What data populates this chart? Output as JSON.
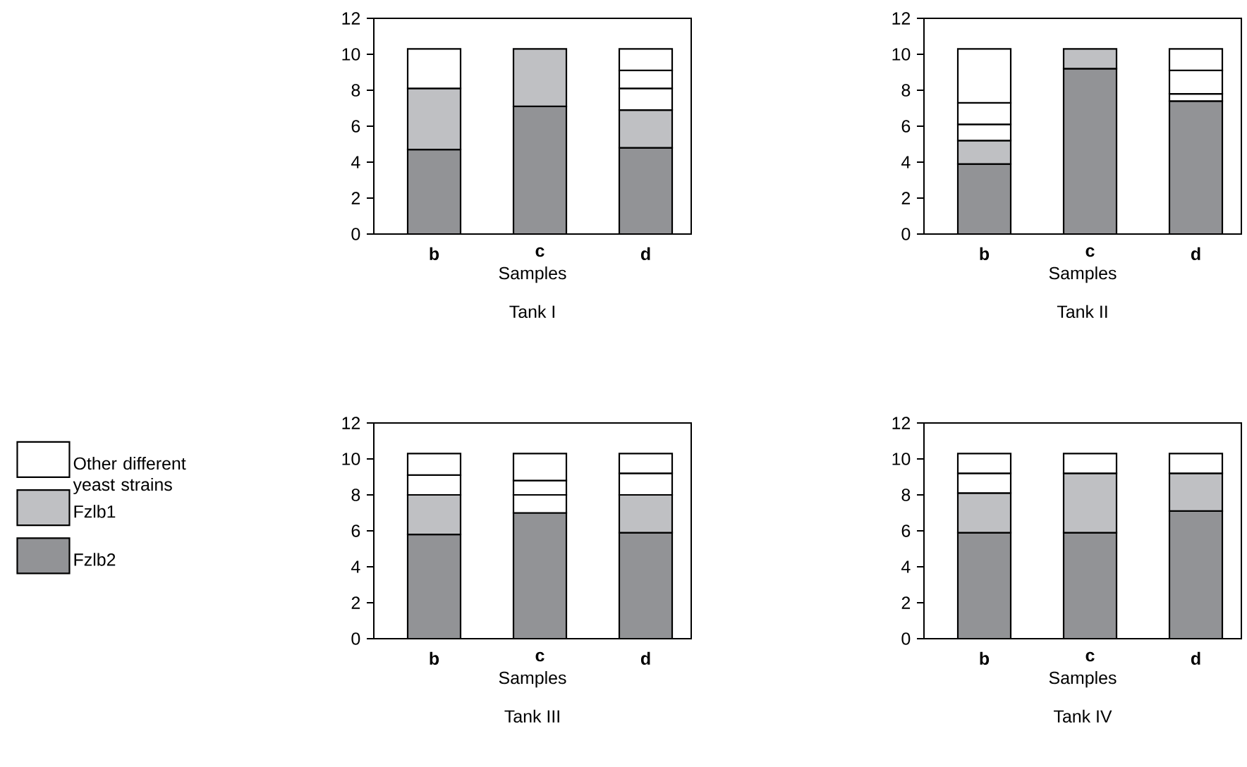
{
  "chart_data": [
    {
      "type": "bar",
      "stacked": true,
      "categories": [
        "b",
        "c",
        "d"
      ],
      "ylim": [
        0,
        12
      ],
      "yticks": [
        0,
        2,
        4,
        6,
        8,
        10,
        12
      ],
      "xlabel": "Samples",
      "title": "Tank I",
      "series": [
        {
          "color": "#929396",
          "values": [
            4.7,
            7.1,
            4.8
          ]
        },
        {
          "color": "#bfc0c3",
          "values": [
            3.4,
            3.2,
            2.1
          ]
        },
        {
          "color": "#ffffff",
          "values": [
            2.2,
            null,
            1.2
          ]
        },
        {
          "color": "#ffffff",
          "values": [
            null,
            null,
            1.0
          ]
        },
        {
          "color": "#ffffff",
          "values": [
            null,
            null,
            1.2
          ]
        }
      ]
    },
    {
      "type": "bar",
      "stacked": true,
      "categories": [
        "b",
        "c",
        "d"
      ],
      "ylim": [
        0,
        12
      ],
      "yticks": [
        0,
        2,
        4,
        6,
        8,
        10,
        12
      ],
      "xlabel": "Samples",
      "title": "Tank II",
      "series": [
        {
          "color": "#929396",
          "values": [
            3.9,
            9.2,
            7.4
          ]
        },
        {
          "color": "#bfc0c3",
          "values": [
            1.3,
            1.1,
            null
          ]
        },
        {
          "color": "#ffffff",
          "values": [
            0.9,
            null,
            0.4
          ]
        },
        {
          "color": "#ffffff",
          "values": [
            1.2,
            null,
            1.3
          ]
        },
        {
          "color": "#ffffff",
          "values": [
            3.0,
            null,
            1.2
          ]
        }
      ]
    },
    {
      "type": "bar",
      "stacked": true,
      "categories": [
        "b",
        "c",
        "d"
      ],
      "ylim": [
        0,
        12
      ],
      "yticks": [
        0,
        2,
        4,
        6,
        8,
        10,
        12
      ],
      "xlabel": "Samples",
      "title": "Tank III",
      "legend": "left",
      "series": [
        {
          "name": "Fzlb2",
          "color": "#929396",
          "values": [
            5.8,
            7.0,
            5.9
          ]
        },
        {
          "name": "Fzlb1",
          "color": "#bfc0c3",
          "values": [
            2.2,
            null,
            2.1
          ]
        },
        {
          "name": "Other different yeast strains",
          "color": "#ffffff",
          "values": [
            1.1,
            1.0,
            1.2
          ]
        },
        {
          "color": "#ffffff",
          "values": [
            1.2,
            0.8,
            1.1
          ]
        },
        {
          "color": "#ffffff",
          "values": [
            null,
            1.5,
            null
          ]
        }
      ]
    },
    {
      "type": "bar",
      "stacked": true,
      "categories": [
        "b",
        "c",
        "d"
      ],
      "ylim": [
        0,
        12
      ],
      "yticks": [
        0,
        2,
        4,
        6,
        8,
        10,
        12
      ],
      "xlabel": "Samples",
      "title": "Tank IV",
      "series": [
        {
          "color": "#929396",
          "values": [
            5.9,
            5.9,
            7.1
          ]
        },
        {
          "color": "#bfc0c3",
          "values": [
            2.2,
            3.3,
            2.1
          ]
        },
        {
          "color": "#ffffff",
          "values": [
            1.1,
            1.1,
            1.1
          ]
        },
        {
          "color": "#ffffff",
          "values": [
            1.1,
            null,
            null
          ]
        }
      ]
    }
  ]
}
